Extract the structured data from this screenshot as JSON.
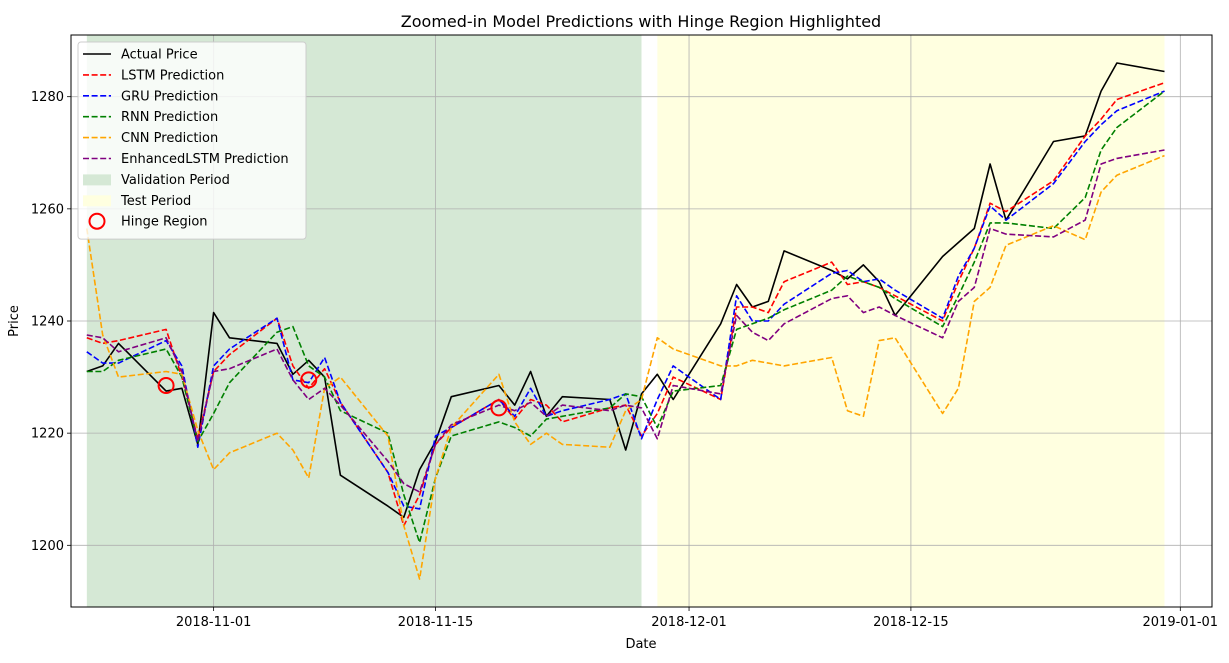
{
  "chart_data": {
    "type": "line",
    "title": "Zoomed-in Model Predictions with Hinge Region Highlighted",
    "xlabel": "Date",
    "ylabel": "Price",
    "xlim": [
      "2018-10-23",
      "2019-01-03"
    ],
    "ylim": [
      1189,
      1291
    ],
    "x_ticks": [
      "2018-11-01",
      "2018-11-15",
      "2018-12-01",
      "2018-12-15",
      "2019-01-01"
    ],
    "y_ticks": [
      1200,
      1220,
      1240,
      1260,
      1280
    ],
    "grid": true,
    "legend_position": "top-left",
    "x": [
      "2018-10-24",
      "2018-10-25",
      "2018-10-26",
      "2018-10-29",
      "2018-10-30",
      "2018-10-31",
      "2018-11-01",
      "2018-11-02",
      "2018-11-05",
      "2018-11-06",
      "2018-11-07",
      "2018-11-08",
      "2018-11-09",
      "2018-11-12",
      "2018-11-13",
      "2018-11-14",
      "2018-11-15",
      "2018-11-16",
      "2018-11-19",
      "2018-11-20",
      "2018-11-21",
      "2018-11-22",
      "2018-11-23",
      "2018-11-26",
      "2018-11-27",
      "2018-11-28",
      "2018-11-29",
      "2018-11-30",
      "2018-12-03",
      "2018-12-04",
      "2018-12-05",
      "2018-12-06",
      "2018-12-07",
      "2018-12-10",
      "2018-12-11",
      "2018-12-12",
      "2018-12-13",
      "2018-12-14",
      "2018-12-17",
      "2018-12-18",
      "2018-12-19",
      "2018-12-20",
      "2018-12-21",
      "2018-12-24",
      "2018-12-26",
      "2018-12-27",
      "2018-12-28",
      "2018-12-31"
    ],
    "series": [
      {
        "name": "Actual Price",
        "color": "#000000",
        "dash": "solid",
        "values": [
          1231,
          1232,
          1236,
          1227.5,
          1228,
          1218,
          1241.5,
          1237,
          1236,
          1230.5,
          1233,
          1230,
          1212.5,
          1207,
          1205,
          1213.5,
          1218.5,
          1226.5,
          1228.5,
          1225,
          1231,
          1223,
          1226.5,
          1226,
          1217,
          1227,
          1230.5,
          1226,
          1239.5,
          1246.5,
          1242.5,
          1243.5,
          1252.5,
          1249,
          1247.5,
          1250,
          1247,
          1241,
          1251.5,
          1254,
          1256.5,
          1268,
          1258,
          1272,
          1273,
          1281,
          1286,
          1284.5
        ]
      },
      {
        "name": "LSTM Prediction",
        "color": "#ff0000",
        "dash": "dashed",
        "values": [
          1237,
          1236,
          1236.5,
          1238.5,
          1230,
          1219,
          1231,
          1234,
          1240.5,
          1232,
          1228,
          1231.5,
          1225.5,
          1213,
          1203.5,
          1209,
          1218,
          1221,
          1226,
          1222.5,
          1226,
          1225,
          1222,
          1224.5,
          1225,
          1219.5,
          1223.5,
          1230,
          1226,
          1242.5,
          1242.5,
          1241.5,
          1247,
          1250.5,
          1246.5,
          1247,
          1246,
          1244.5,
          1240,
          1247,
          1253,
          1261,
          1259.5,
          1265,
          1273,
          1276,
          1279.5,
          1282.5
        ]
      },
      {
        "name": "GRU Prediction",
        "color": "#0000ff",
        "dash": "dashed",
        "values": [
          1234.5,
          1232.5,
          1232.5,
          1236.5,
          1232,
          1217.5,
          1232,
          1235,
          1240.5,
          1229.5,
          1229,
          1233.5,
          1225.5,
          1213,
          1207,
          1206.5,
          1219.5,
          1221,
          1226,
          1223,
          1228,
          1223,
          1224,
          1226,
          1227,
          1219,
          1226,
          1232,
          1226,
          1244.5,
          1240,
          1240,
          1243,
          1248.5,
          1249,
          1247,
          1247.5,
          1245.5,
          1240.5,
          1248,
          1253,
          1260.5,
          1258,
          1264.5,
          1272,
          1275,
          1277.5,
          1281
        ]
      },
      {
        "name": "RNN Prediction",
        "color": "#008000",
        "dash": "dashed",
        "values": [
          1231,
          1231,
          1233,
          1235,
          1230,
          1218.5,
          1223.5,
          1229,
          1238,
          1239,
          1232,
          1230,
          1224,
          1220,
          1209,
          1200.5,
          1212,
          1219.5,
          1222,
          1221,
          1219.5,
          1222.5,
          1223,
          1224.5,
          1227,
          1226.5,
          1221,
          1227.5,
          1228.5,
          1238.5,
          1239.5,
          1240.5,
          1242,
          1245.5,
          1248,
          1247,
          1246,
          1244,
          1239,
          1244.5,
          1250.5,
          1257.5,
          1257.5,
          1256.5,
          1262,
          1270.5,
          1274.5,
          1281
        ]
      },
      {
        "name": "CNN Prediction",
        "color": "#ffa500",
        "dash": "dashed",
        "values": [
          1256.5,
          1237.5,
          1230,
          1231,
          1230.5,
          1220.5,
          1213.5,
          1216.5,
          1220,
          1217,
          1212,
          1228,
          1230,
          1219.5,
          1203.5,
          1194,
          1212,
          1221,
          1230.5,
          1222,
          1218,
          1220,
          1218,
          1217.5,
          1224,
          1226,
          1237,
          1235,
          1232,
          1232,
          1233,
          1232.5,
          1232,
          1233.5,
          1224,
          1223,
          1236.5,
          1237,
          1223.5,
          1228,
          1243.5,
          1246,
          1253.5,
          1257,
          1254.5,
          1263,
          1266,
          1269.5
        ]
      },
      {
        "name": "EnhancedLSTM Prediction",
        "color": "#800080",
        "dash": "dashed",
        "values": [
          1237.5,
          1237,
          1234.5,
          1237,
          1231,
          1218.5,
          1231,
          1231.5,
          1235,
          1229.5,
          1226,
          1228,
          1225,
          1215,
          1211,
          1209.5,
          1218,
          1221.5,
          1225,
          1224,
          1225.5,
          1223,
          1225,
          1224,
          1225,
          1224.5,
          1219,
          1228.5,
          1227,
          1241,
          1238,
          1236.5,
          1239.5,
          1244,
          1244.5,
          1241.5,
          1242.5,
          1241,
          1237,
          1243.5,
          1246,
          1256.5,
          1255.5,
          1255,
          1258,
          1268,
          1269,
          1270.5
        ]
      }
    ],
    "shaded_regions": [
      {
        "name": "Validation Period",
        "start": "2018-10-24",
        "end": "2018-11-28",
        "color": "#d5e8d5"
      },
      {
        "name": "Test Period",
        "start": "2018-11-29",
        "end": "2018-12-31",
        "color": "#ffffe0"
      }
    ],
    "hinge_points": {
      "name": "Hinge Region",
      "color": "#ff0000",
      "points": [
        {
          "x": "2018-10-29",
          "y": 1228.5
        },
        {
          "x": "2018-11-07",
          "y": 1229.5
        },
        {
          "x": "2018-11-19",
          "y": 1224.5
        }
      ]
    }
  }
}
